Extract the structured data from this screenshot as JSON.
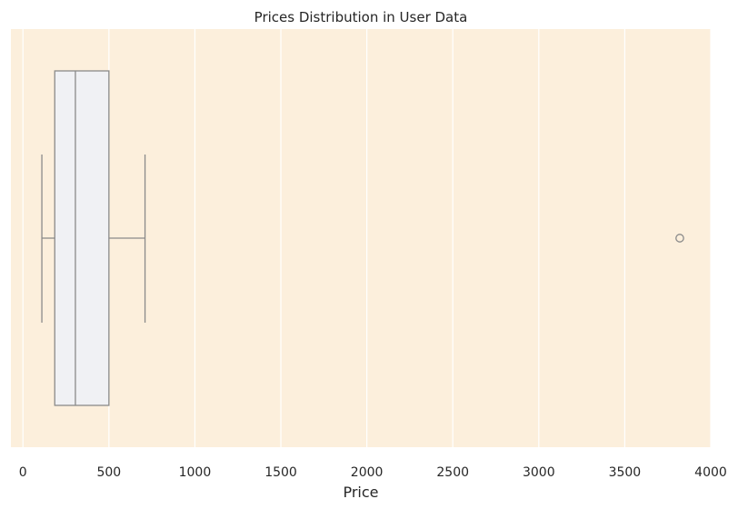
{
  "chart_data": {
    "type": "boxplot",
    "orientation": "horizontal",
    "title": "Prices Distribution in User Data",
    "xlabel": "Price",
    "ylabel": "",
    "xlim": [
      -70,
      4000
    ],
    "x_ticks": [
      0,
      500,
      1000,
      1500,
      2000,
      2500,
      3000,
      3500,
      4000
    ],
    "x_tick_labels": [
      "0",
      "500",
      "1000",
      "1500",
      "2000",
      "2500",
      "3000",
      "3500",
      "4000"
    ],
    "grid": true,
    "box": {
      "whisker_low": 110,
      "q1": 185,
      "median": 305,
      "q3": 500,
      "whisker_high": 710,
      "outliers": [
        3820
      ]
    },
    "colors": {
      "plot_background": "#fcefdc",
      "grid": "#ffffff",
      "box_fill": "#f0f1f4",
      "box_stroke": "#8a8a8a",
      "text": "#262626"
    }
  }
}
